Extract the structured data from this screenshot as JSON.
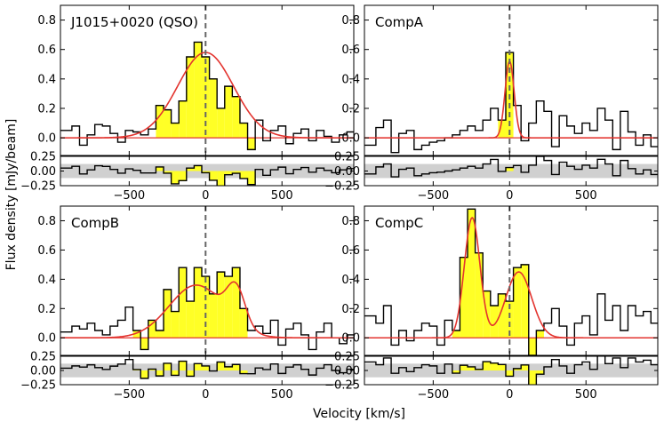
{
  "figure": {
    "xlabel": "Velocity [km/s]",
    "ylabel": "Flux density [mJy/beam]"
  },
  "chart_data": [
    {
      "type": "line",
      "title": "J1015+0020 (QSO)",
      "xlim": [
        -950,
        970
      ],
      "ylim": [
        -0.12,
        0.9
      ],
      "xticks": [
        -500,
        0,
        500
      ],
      "yticks": [
        0.0,
        0.2,
        0.4,
        0.6,
        0.8
      ],
      "velocity_bins": [
        -900,
        -850,
        -800,
        -750,
        -700,
        -650,
        -600,
        -550,
        -500,
        -450,
        -400,
        -350,
        -300,
        -250,
        -200,
        -150,
        -100,
        -50,
        0,
        50,
        100,
        150,
        200,
        250,
        300,
        350,
        400,
        450,
        500,
        550,
        600,
        650,
        700,
        750,
        800,
        850,
        900,
        950
      ],
      "flux": [
        0.05,
        0.08,
        -0.05,
        0.02,
        0.09,
        0.08,
        0.03,
        -0.03,
        0.05,
        0.04,
        0.02,
        0.06,
        0.22,
        0.19,
        0.1,
        0.25,
        0.55,
        0.65,
        0.55,
        0.4,
        0.2,
        0.35,
        0.28,
        0.1,
        -0.08,
        0.12,
        -0.02,
        0.05,
        0.08,
        -0.04,
        0.03,
        0.06,
        -0.02,
        0.05,
        0.01,
        -0.03,
        0.02,
        0.04
      ],
      "fit": {
        "components": [
          {
            "center": 0,
            "amplitude": 0.58,
            "fwhm": 430
          }
        ]
      },
      "highlight_range": [
        -300,
        350
      ],
      "residual_ylim": [
        -0.25,
        0.25
      ],
      "residual_yticks": [
        -0.25,
        0.0,
        0.25
      ],
      "residual_band": 0.12
    },
    {
      "type": "line",
      "title": "CompA",
      "xlim": [
        -950,
        970
      ],
      "ylim": [
        -0.12,
        0.9
      ],
      "xticks": [
        -500,
        0,
        500
      ],
      "yticks": [
        0.0,
        0.2,
        0.4,
        0.6,
        0.8
      ],
      "velocity_bins": [
        -900,
        -850,
        -800,
        -750,
        -700,
        -650,
        -600,
        -550,
        -500,
        -450,
        -400,
        -350,
        -300,
        -250,
        -200,
        -150,
        -100,
        -50,
        0,
        50,
        100,
        150,
        200,
        250,
        300,
        350,
        400,
        450,
        500,
        550,
        600,
        650,
        700,
        750,
        800,
        850,
        900,
        950
      ],
      "flux": [
        -0.05,
        0.07,
        0.12,
        -0.1,
        0.03,
        0.05,
        -0.08,
        -0.05,
        -0.03,
        -0.02,
        0.0,
        0.02,
        0.05,
        0.08,
        0.05,
        0.12,
        0.2,
        0.12,
        0.58,
        0.22,
        -0.02,
        0.1,
        0.25,
        0.18,
        -0.06,
        0.15,
        0.08,
        0.03,
        0.1,
        0.05,
        0.2,
        0.12,
        -0.08,
        0.18,
        0.04,
        -0.05,
        0.02,
        -0.06
      ],
      "fit": {
        "components": [
          {
            "center": 0,
            "amplitude": 0.52,
            "fwhm": 70
          }
        ]
      },
      "highlight_range": [
        -50,
        50
      ],
      "residual_ylim": [
        -0.25,
        0.25
      ],
      "residual_yticks": [
        -0.25,
        0.0,
        0.25
      ],
      "residual_band": 0.12
    },
    {
      "type": "line",
      "title": "CompB",
      "xlim": [
        -950,
        970
      ],
      "ylim": [
        -0.12,
        0.9
      ],
      "xticks": [
        -500,
        0,
        500
      ],
      "yticks": [
        0.0,
        0.2,
        0.4,
        0.6,
        0.8
      ],
      "velocity_bins": [
        -900,
        -850,
        -800,
        -750,
        -700,
        -650,
        -600,
        -550,
        -500,
        -450,
        -400,
        -350,
        -300,
        -250,
        -200,
        -150,
        -100,
        -50,
        0,
        50,
        100,
        150,
        200,
        250,
        300,
        350,
        400,
        450,
        500,
        550,
        600,
        650,
        700,
        750,
        800,
        850,
        900,
        950
      ],
      "flux": [
        0.04,
        0.08,
        0.06,
        0.1,
        0.05,
        0.02,
        0.08,
        0.12,
        0.21,
        0.05,
        -0.08,
        0.12,
        0.05,
        0.33,
        0.18,
        0.48,
        0.25,
        0.48,
        0.42,
        0.3,
        0.45,
        0.42,
        0.48,
        0.2,
        0.05,
        0.08,
        0.03,
        0.12,
        -0.05,
        0.06,
        0.1,
        0.02,
        -0.08,
        0.04,
        0.1,
        0.0,
        -0.04,
        0.02
      ],
      "fit": {
        "components": [
          {
            "center": -60,
            "amplitude": 0.36,
            "fwhm": 420
          },
          {
            "center": 200,
            "amplitude": 0.25,
            "fwhm": 140
          }
        ]
      },
      "highlight_range": [
        -450,
        300
      ],
      "residual_ylim": [
        -0.25,
        0.25
      ],
      "residual_yticks": [
        -0.25,
        0.0,
        0.25
      ],
      "residual_band": 0.12
    },
    {
      "type": "line",
      "title": "CompC",
      "xlim": [
        -950,
        970
      ],
      "ylim": [
        -0.12,
        0.9
      ],
      "xticks": [
        -500,
        0,
        500
      ],
      "yticks": [
        0.0,
        0.2,
        0.4,
        0.6,
        0.8
      ],
      "velocity_bins": [
        -900,
        -850,
        -800,
        -750,
        -700,
        -650,
        -600,
        -550,
        -500,
        -450,
        -400,
        -350,
        -300,
        -250,
        -200,
        -150,
        -100,
        -50,
        0,
        50,
        100,
        150,
        200,
        250,
        300,
        350,
        400,
        450,
        500,
        550,
        600,
        650,
        700,
        750,
        800,
        850,
        900,
        950
      ],
      "flux": [
        0.15,
        0.1,
        0.22,
        -0.05,
        0.05,
        -0.02,
        0.05,
        0.1,
        0.08,
        -0.05,
        0.12,
        0.05,
        0.55,
        0.88,
        0.58,
        0.32,
        0.22,
        0.3,
        0.25,
        0.48,
        0.5,
        -0.12,
        0.05,
        0.1,
        0.2,
        0.08,
        -0.05,
        0.1,
        0.15,
        0.02,
        0.3,
        0.12,
        0.22,
        0.05,
        0.22,
        0.15,
        0.18,
        0.1
      ],
      "fit": {
        "components": [
          {
            "center": -245,
            "amplitude": 0.82,
            "fwhm": 120
          },
          {
            "center": 60,
            "amplitude": 0.45,
            "fwhm": 200
          }
        ]
      },
      "highlight_range": [
        -350,
        230
      ],
      "residual_ylim": [
        -0.25,
        0.25
      ],
      "residual_yticks": [
        -0.25,
        0.0,
        0.25
      ],
      "residual_band": 0.12
    }
  ]
}
